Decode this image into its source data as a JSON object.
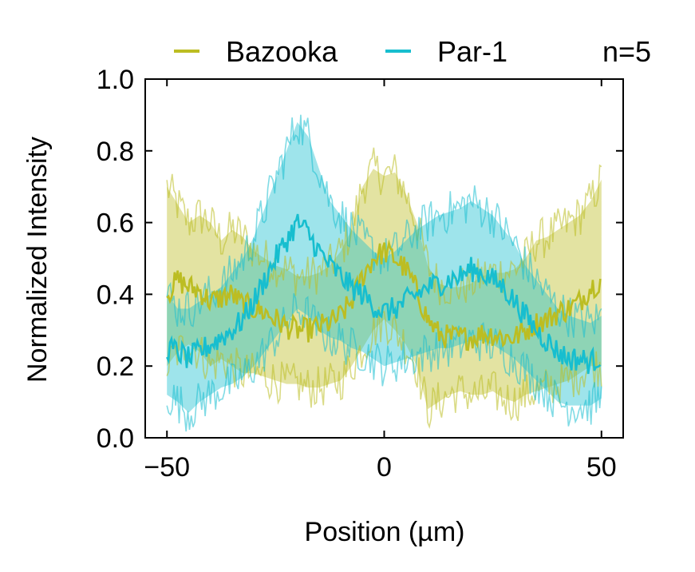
{
  "chart_data": {
    "type": "line",
    "xlabel": "Position (µm)",
    "ylabel": "Normalized Intensity",
    "xlim": [
      -55,
      55
    ],
    "ylim": [
      0,
      1.0
    ],
    "x_ticks": [
      -50,
      0,
      50
    ],
    "x_tick_labels": [
      "−50",
      "0",
      "50"
    ],
    "y_ticks": [
      0,
      0.2,
      0.4,
      0.6,
      0.8,
      1.0
    ],
    "y_tick_labels": [
      "0.0",
      "0.2",
      "0.4",
      "0.6",
      "0.8",
      "1.0"
    ],
    "annotation": "n=5",
    "legend_position": "top",
    "series": [
      {
        "name": "Bazooka",
        "color": "#bcbd22",
        "x": [
          -50,
          -47.5,
          -45,
          -42.5,
          -40,
          -37.5,
          -35,
          -32.5,
          -30,
          -27.5,
          -25,
          -22.5,
          -20,
          -17.5,
          -15,
          -12.5,
          -10,
          -7.5,
          -5,
          -2.5,
          0,
          2.5,
          5,
          7.5,
          10,
          12.5,
          15,
          17.5,
          20,
          22.5,
          25,
          27.5,
          30,
          32.5,
          35,
          37.5,
          40,
          42.5,
          45,
          47.5,
          50
        ],
        "mean": [
          0.4,
          0.44,
          0.42,
          0.41,
          0.38,
          0.39,
          0.4,
          0.37,
          0.36,
          0.35,
          0.33,
          0.31,
          0.3,
          0.3,
          0.31,
          0.32,
          0.34,
          0.38,
          0.45,
          0.5,
          0.52,
          0.5,
          0.47,
          0.41,
          0.33,
          0.29,
          0.28,
          0.28,
          0.28,
          0.29,
          0.29,
          0.28,
          0.28,
          0.3,
          0.32,
          0.33,
          0.35,
          0.36,
          0.38,
          0.42,
          0.44
        ],
        "upper": [
          0.7,
          0.65,
          0.6,
          0.62,
          0.6,
          0.55,
          0.58,
          0.56,
          0.52,
          0.5,
          0.48,
          0.47,
          0.45,
          0.45,
          0.46,
          0.48,
          0.52,
          0.58,
          0.7,
          0.75,
          0.73,
          0.74,
          0.68,
          0.6,
          0.48,
          0.43,
          0.42,
          0.42,
          0.43,
          0.45,
          0.46,
          0.46,
          0.47,
          0.5,
          0.55,
          0.56,
          0.58,
          0.6,
          0.62,
          0.66,
          0.72
        ],
        "lower": [
          0.2,
          0.24,
          0.26,
          0.24,
          0.2,
          0.22,
          0.2,
          0.18,
          0.18,
          0.17,
          0.16,
          0.15,
          0.15,
          0.14,
          0.14,
          0.15,
          0.16,
          0.2,
          0.25,
          0.3,
          0.33,
          0.3,
          0.26,
          0.2,
          0.08,
          0.1,
          0.12,
          0.13,
          0.12,
          0.12,
          0.13,
          0.11,
          0.1,
          0.12,
          0.13,
          0.14,
          0.15,
          0.16,
          0.18,
          0.2,
          0.2
        ]
      },
      {
        "name": "Par-1",
        "color": "#17becf",
        "x": [
          -50,
          -47.5,
          -45,
          -42.5,
          -40,
          -37.5,
          -35,
          -32.5,
          -30,
          -27.5,
          -25,
          -22.5,
          -20,
          -17.5,
          -15,
          -12.5,
          -10,
          -7.5,
          -5,
          -2.5,
          0,
          2.5,
          5,
          7.5,
          10,
          12.5,
          15,
          17.5,
          20,
          22.5,
          25,
          27.5,
          30,
          32.5,
          35,
          37.5,
          40,
          42.5,
          45,
          47.5,
          50
        ],
        "mean": [
          0.25,
          0.24,
          0.22,
          0.24,
          0.26,
          0.28,
          0.3,
          0.33,
          0.38,
          0.44,
          0.5,
          0.55,
          0.6,
          0.57,
          0.52,
          0.48,
          0.45,
          0.42,
          0.4,
          0.37,
          0.35,
          0.36,
          0.38,
          0.4,
          0.42,
          0.43,
          0.44,
          0.45,
          0.47,
          0.46,
          0.44,
          0.42,
          0.38,
          0.34,
          0.3,
          0.27,
          0.24,
          0.22,
          0.22,
          0.21,
          0.23
        ],
        "upper": [
          0.4,
          0.36,
          0.36,
          0.38,
          0.4,
          0.42,
          0.46,
          0.5,
          0.56,
          0.64,
          0.72,
          0.8,
          0.88,
          0.84,
          0.75,
          0.66,
          0.62,
          0.58,
          0.55,
          0.52,
          0.5,
          0.52,
          0.55,
          0.58,
          0.6,
          0.62,
          0.63,
          0.64,
          0.66,
          0.64,
          0.62,
          0.58,
          0.54,
          0.48,
          0.44,
          0.4,
          0.36,
          0.34,
          0.33,
          0.32,
          0.34
        ],
        "lower": [
          0.12,
          0.1,
          0.07,
          0.1,
          0.12,
          0.14,
          0.15,
          0.17,
          0.2,
          0.24,
          0.28,
          0.32,
          0.36,
          0.34,
          0.3,
          0.28,
          0.27,
          0.25,
          0.24,
          0.22,
          0.2,
          0.21,
          0.22,
          0.23,
          0.24,
          0.25,
          0.25,
          0.26,
          0.27,
          0.27,
          0.26,
          0.24,
          0.22,
          0.19,
          0.16,
          0.13,
          0.1,
          0.09,
          0.09,
          0.09,
          0.11
        ]
      }
    ]
  }
}
